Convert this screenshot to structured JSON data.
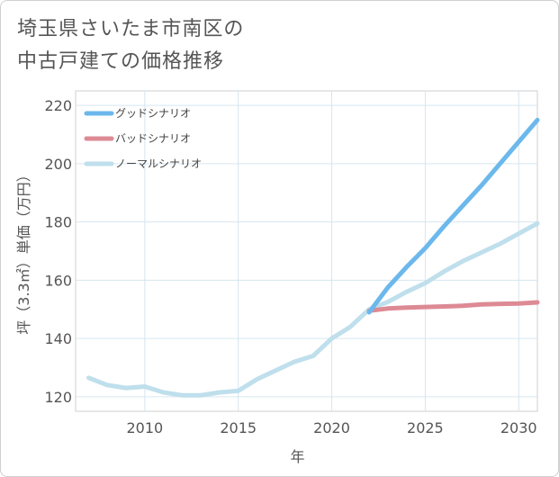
{
  "title_line1": "埼玉県さいたま市南区の",
  "title_line2": "中古戸建ての価格推移",
  "chart_data": {
    "type": "line",
    "xlabel": "年",
    "ylabel": "坪（3.3㎡）単価（万円）",
    "xlim": [
      2006.3,
      2031
    ],
    "ylim": [
      115,
      225
    ],
    "xticks": [
      2010,
      2015,
      2020,
      2025,
      2030
    ],
    "yticks": [
      120,
      140,
      160,
      180,
      200,
      220
    ],
    "grid": true,
    "legend_position": "top-left",
    "series": [
      {
        "name": "グッドシナリオ",
        "color": "#6cb8ec",
        "x": [
          2022,
          2023,
          2024,
          2025,
          2026,
          2027,
          2028,
          2029,
          2030,
          2031
        ],
        "y": [
          149,
          157.5,
          164.5,
          171,
          178.5,
          185.5,
          192.5,
          200,
          207.5,
          215
        ]
      },
      {
        "name": "バッドシナリオ",
        "color": "#dd8a94",
        "x": [
          2022,
          2023,
          2024,
          2025,
          2026,
          2027,
          2028,
          2029,
          2030,
          2031
        ],
        "y": [
          149.5,
          150.3,
          150.6,
          150.8,
          151,
          151.2,
          151.7,
          151.9,
          152,
          152.4
        ]
      },
      {
        "name": "ノーマルシナリオ",
        "color": "#bfdfec",
        "x": [
          2007,
          2008,
          2009,
          2010,
          2011,
          2012,
          2013,
          2014,
          2015,
          2016,
          2017,
          2018,
          2019,
          2020,
          2021,
          2022,
          2023,
          2024,
          2025,
          2026,
          2027,
          2028,
          2029,
          2030,
          2031
        ],
        "y": [
          126.5,
          124,
          123,
          123.5,
          121.5,
          120.5,
          120.5,
          121.5,
          122,
          126,
          129,
          132,
          134,
          140,
          144,
          150,
          152.5,
          156,
          159,
          163,
          166.5,
          169.5,
          172.5,
          176,
          179.5
        ]
      }
    ]
  }
}
